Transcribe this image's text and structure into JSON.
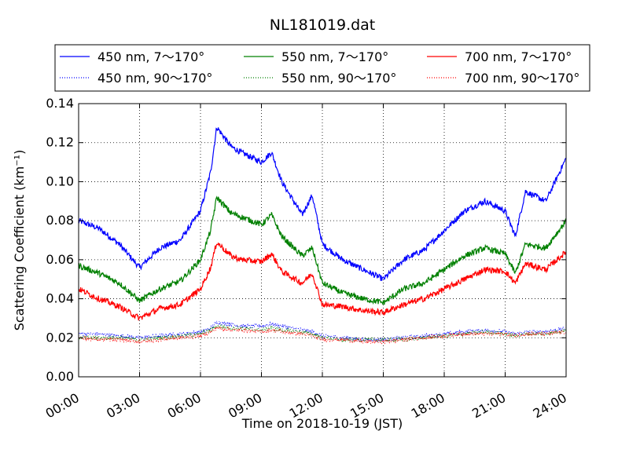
{
  "chart_data": {
    "type": "line",
    "title": "NL181019.dat",
    "xlabel": "Time on 2018-10-19 (JST)",
    "ylabel": "Scattering Coefficient (km⁻¹)",
    "xlim": [
      "00:00",
      "24:00"
    ],
    "ylim": [
      0,
      0.14
    ],
    "grid": true,
    "legend_position": "top",
    "x_ticks": [
      "00:00",
      "03:00",
      "06:00",
      "09:00",
      "12:00",
      "15:00",
      "18:00",
      "21:00",
      "24:00"
    ],
    "y_ticks": [
      "0.00",
      "0.02",
      "0.04",
      "0.06",
      "0.08",
      "0.10",
      "0.12",
      "0.14"
    ],
    "x_hours": [
      0,
      1,
      2,
      3,
      4,
      5,
      6,
      6.5,
      6.8,
      7.5,
      8,
      9,
      9.5,
      10,
      11,
      11.5,
      12,
      13,
      14,
      15,
      16,
      17,
      18,
      19,
      20,
      21,
      21.5,
      22,
      23,
      24
    ],
    "series": [
      {
        "name": "450 nm, 7～170°",
        "color": "#0000ff",
        "style": "solid",
        "values": [
          0.08,
          0.076,
          0.068,
          0.056,
          0.066,
          0.07,
          0.085,
          0.105,
          0.128,
          0.118,
          0.115,
          0.11,
          0.115,
          0.1,
          0.083,
          0.093,
          0.068,
          0.06,
          0.055,
          0.05,
          0.06,
          0.065,
          0.075,
          0.085,
          0.09,
          0.085,
          0.072,
          0.095,
          0.09,
          0.112
        ]
      },
      {
        "name": "450 nm, 90～170°",
        "color": "#0000ff",
        "style": "dotted",
        "values": [
          0.022,
          0.022,
          0.021,
          0.02,
          0.021,
          0.022,
          0.023,
          0.025,
          0.028,
          0.027,
          0.026,
          0.026,
          0.027,
          0.026,
          0.024,
          0.023,
          0.021,
          0.02,
          0.019,
          0.019,
          0.02,
          0.021,
          0.022,
          0.023,
          0.024,
          0.023,
          0.022,
          0.023,
          0.023,
          0.025
        ]
      },
      {
        "name": "550 nm, 7～170°",
        "color": "#008000",
        "style": "solid",
        "values": [
          0.057,
          0.053,
          0.048,
          0.039,
          0.045,
          0.049,
          0.06,
          0.075,
          0.092,
          0.084,
          0.082,
          0.078,
          0.083,
          0.072,
          0.062,
          0.066,
          0.048,
          0.043,
          0.04,
          0.038,
          0.045,
          0.048,
          0.055,
          0.062,
          0.066,
          0.063,
          0.053,
          0.068,
          0.066,
          0.08
        ]
      },
      {
        "name": "550 nm, 90～170°",
        "color": "#008000",
        "style": "dotted",
        "values": [
          0.02,
          0.02,
          0.02,
          0.019,
          0.02,
          0.021,
          0.022,
          0.024,
          0.026,
          0.025,
          0.025,
          0.024,
          0.025,
          0.024,
          0.023,
          0.022,
          0.02,
          0.019,
          0.019,
          0.019,
          0.019,
          0.02,
          0.021,
          0.022,
          0.023,
          0.022,
          0.021,
          0.022,
          0.022,
          0.024
        ]
      },
      {
        "name": "700 nm, 7～170°",
        "color": "#ff0000",
        "style": "solid",
        "values": [
          0.045,
          0.04,
          0.036,
          0.03,
          0.035,
          0.037,
          0.045,
          0.056,
          0.069,
          0.062,
          0.06,
          0.059,
          0.063,
          0.054,
          0.048,
          0.053,
          0.037,
          0.036,
          0.034,
          0.033,
          0.037,
          0.04,
          0.045,
          0.05,
          0.055,
          0.054,
          0.048,
          0.058,
          0.055,
          0.064
        ]
      },
      {
        "name": "700 nm, 90～170°",
        "color": "#ff0000",
        "style": "dotted",
        "values": [
          0.02,
          0.019,
          0.019,
          0.018,
          0.019,
          0.02,
          0.021,
          0.023,
          0.025,
          0.024,
          0.024,
          0.023,
          0.024,
          0.023,
          0.022,
          0.021,
          0.019,
          0.019,
          0.018,
          0.018,
          0.019,
          0.02,
          0.021,
          0.022,
          0.022,
          0.022,
          0.021,
          0.022,
          0.022,
          0.023
        ]
      }
    ]
  }
}
